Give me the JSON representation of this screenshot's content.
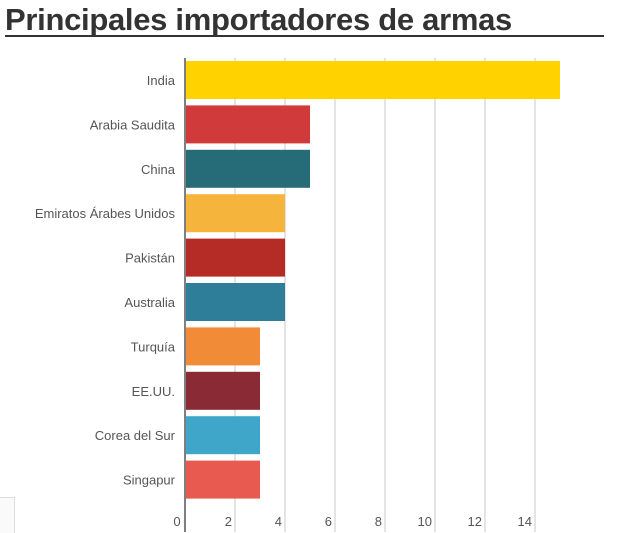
{
  "title": "Principales importadores de armas",
  "chart_data": {
    "type": "bar",
    "orientation": "horizontal",
    "title": "Principales importadores de armas",
    "xlabel": "",
    "ylabel": "",
    "categories": [
      "India",
      "Arabia Saudita",
      "China",
      "Emiratos Árabes Unidos",
      "Pakistán",
      "Australia",
      "Turquía",
      "EE.UU.",
      "Corea del Sur",
      "Singapur"
    ],
    "values": [
      15,
      5,
      5,
      4,
      4,
      4,
      3,
      3,
      3,
      3
    ],
    "xlim": [
      0,
      15.2
    ],
    "xticks": [
      "0",
      "2",
      "4",
      "6",
      "8",
      "10",
      "12",
      "14"
    ],
    "grid": true,
    "colors": [
      "#ffd200",
      "#d13a3a",
      "#266b78",
      "#f5b43b",
      "#b52b26",
      "#2e7d99",
      "#f28b38",
      "#8a2a34",
      "#40a6c9",
      "#e85a50"
    ]
  }
}
